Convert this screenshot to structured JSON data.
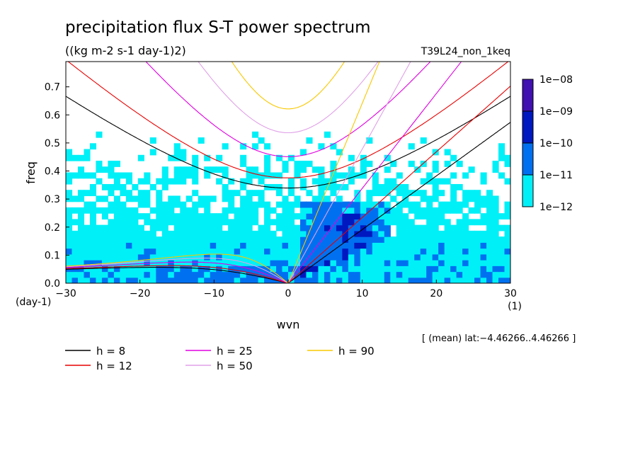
{
  "chart_data": {
    "type": "heatmap",
    "title": "precipitation flux S-T power spectrum",
    "subtitle": "((kg m-2 s-1 day-1)2)",
    "run_label": "T39L24_non_1keq",
    "xlabel": "wvn",
    "ylabel": "freq",
    "x_unit": "(1)",
    "y_unit": "(day-1)",
    "xlim": [
      -30,
      30
    ],
    "ylim": [
      0,
      0.79
    ],
    "xticks": [
      -30,
      -20,
      -10,
      0,
      10,
      20,
      30
    ],
    "yticks": [
      0.0,
      0.1,
      0.2,
      0.3,
      0.4,
      0.5,
      0.6,
      0.7
    ],
    "xtick_labels": [
      "−30",
      "−20",
      "−10",
      "0",
      "10",
      "20",
      "30"
    ],
    "ytick_labels": [
      "0.0",
      "0.1",
      "0.2",
      "0.3",
      "0.4",
      "0.5",
      "0.6",
      "0.7"
    ],
    "footer": "[ (mean) lat:−4.46266..4.46266 ]",
    "colorbar": {
      "levels": [
        "1e−12",
        "1e−11",
        "1e−10",
        "1e−09",
        "1e−08"
      ],
      "colors": [
        "#00f0f8",
        "#0070f0",
        "#0018c0",
        "#4010b0"
      ]
    },
    "dispersion_curves": [
      {
        "label": "h =  8",
        "h": 8,
        "color": "#000000"
      },
      {
        "label": "h = 12",
        "h": 12,
        "color": "#e80000"
      },
      {
        "label": "h = 25",
        "h": 25,
        "color": "#e000e0"
      },
      {
        "label": "h = 50",
        "h": 50,
        "color": "#e0a0e8"
      },
      {
        "label": "h = 90",
        "h": 90,
        "color": "#f8c800"
      }
    ]
  }
}
